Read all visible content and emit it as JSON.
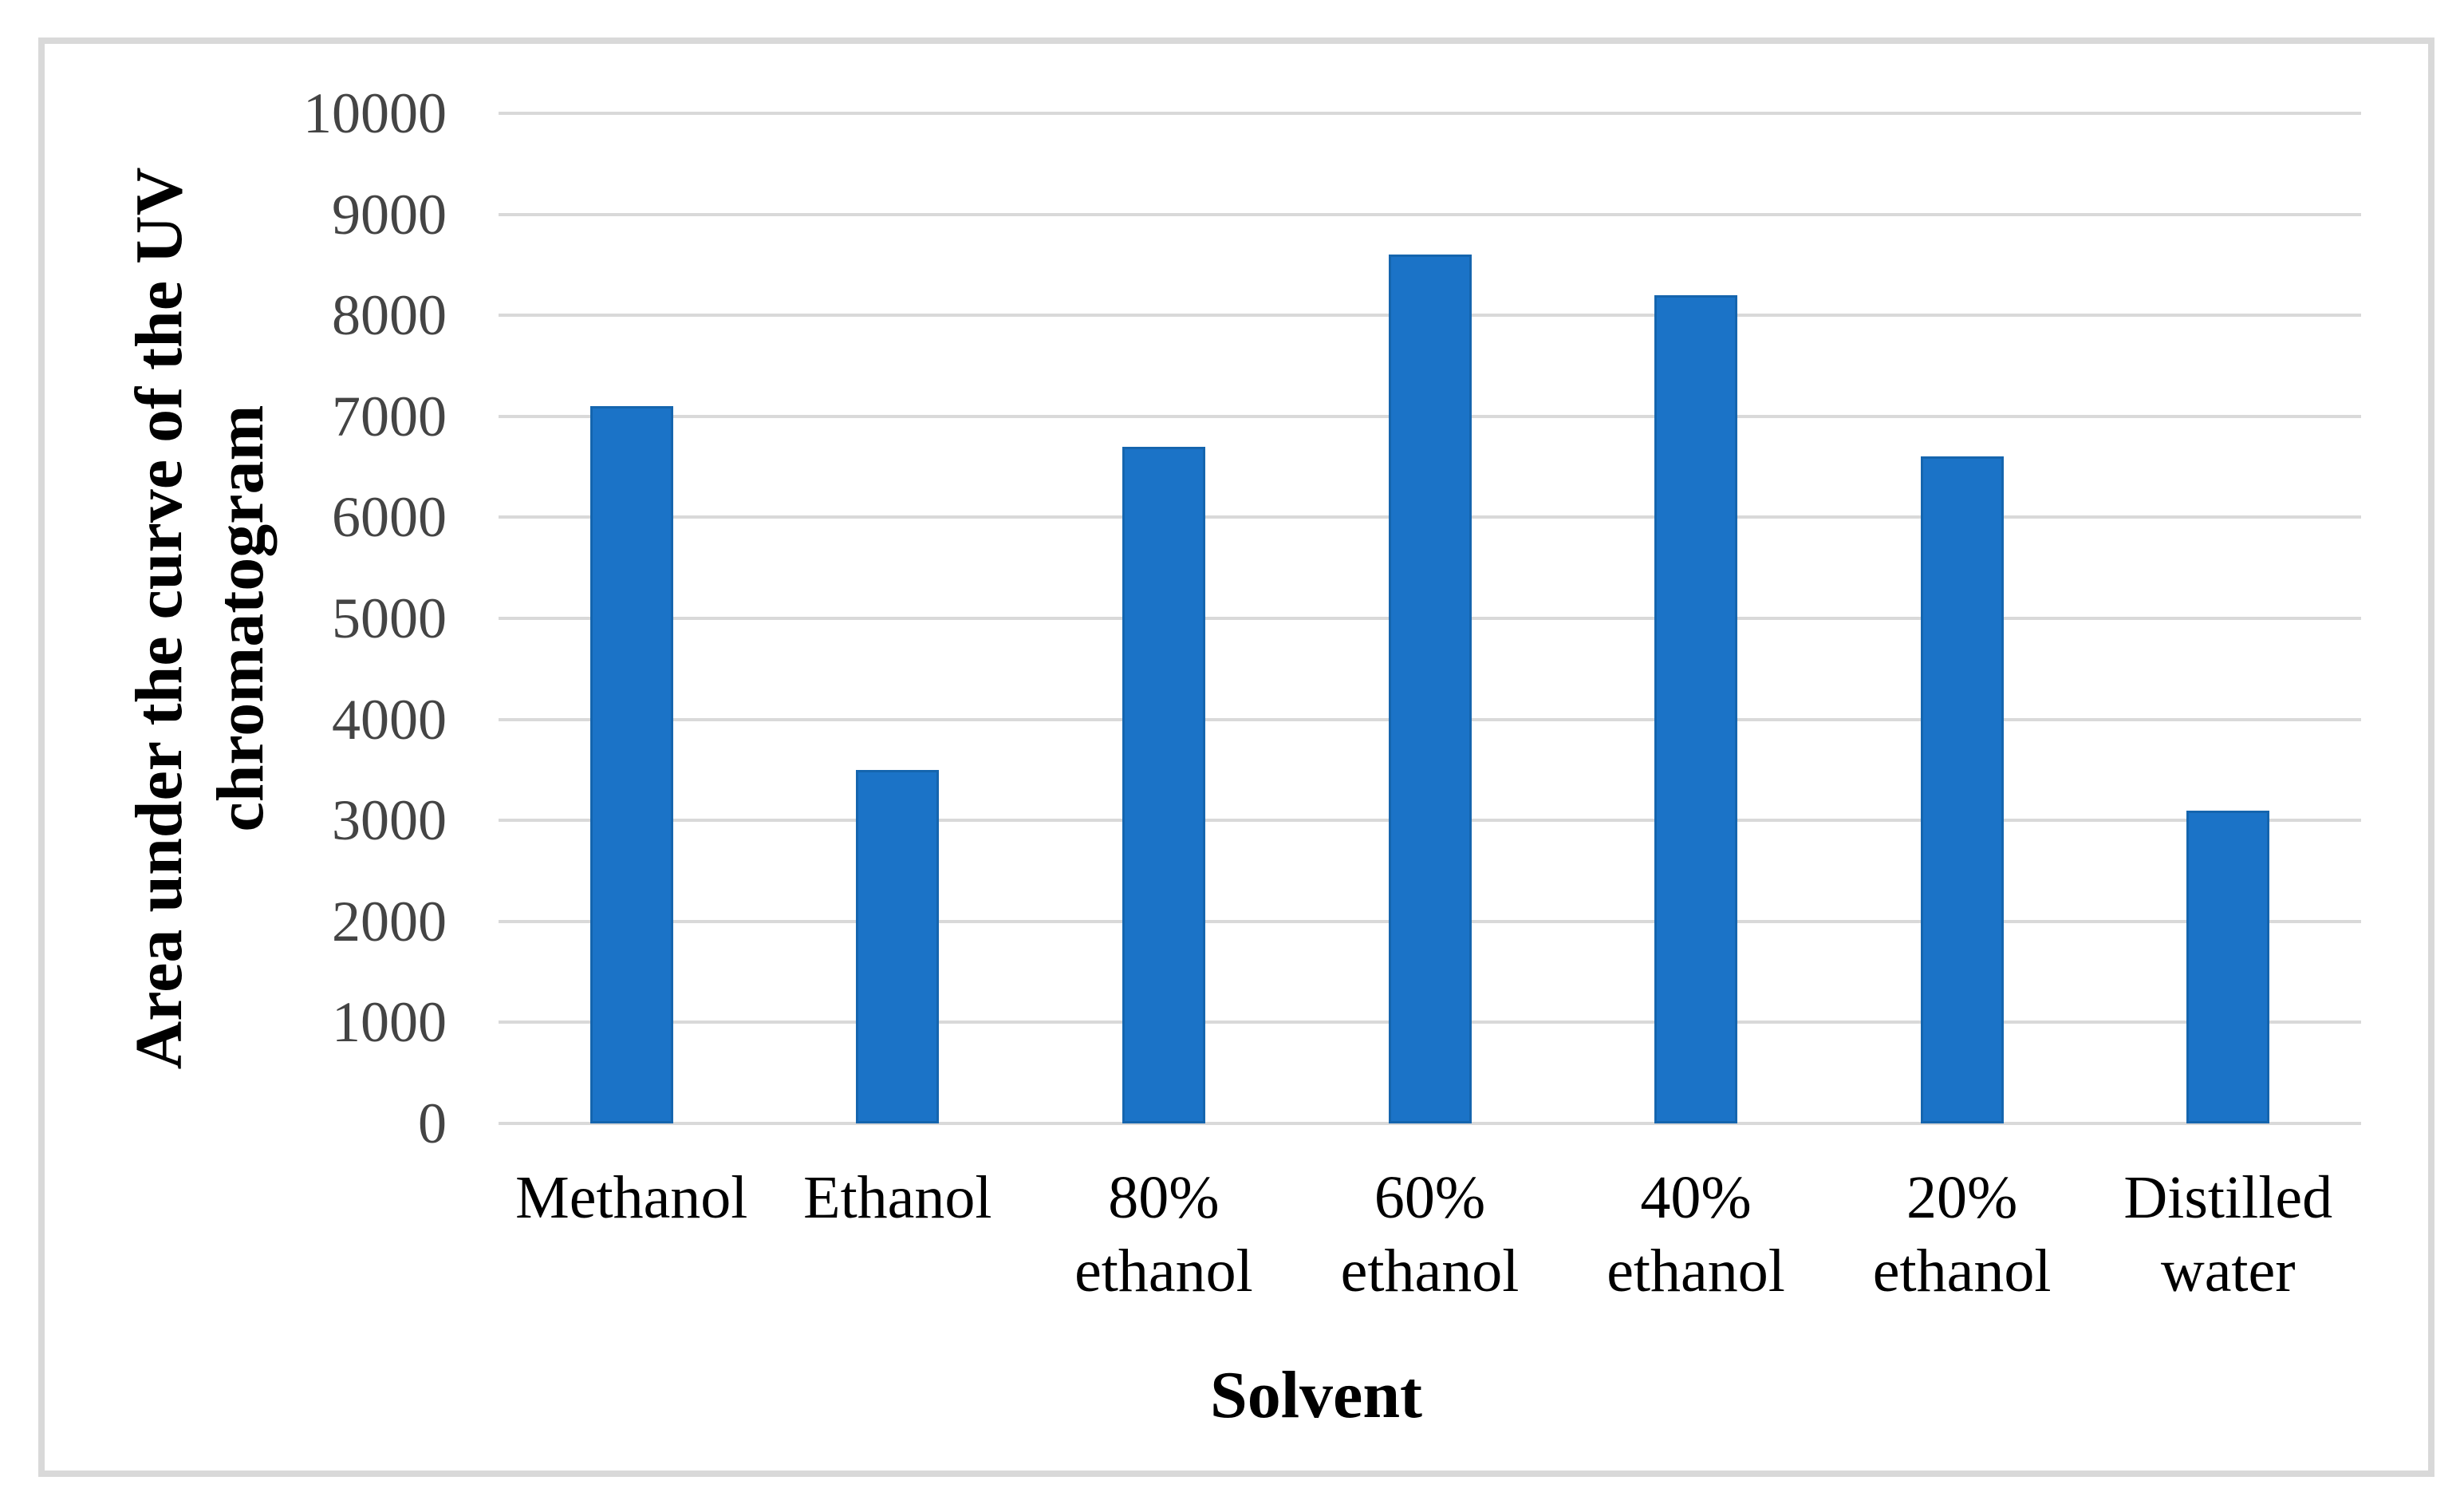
{
  "figure": {
    "frame_color": "#D9D9D9",
    "background_color": "#FFFFFF"
  },
  "chart_data": {
    "type": "bar",
    "title": "",
    "categories": [
      "Methanol",
      "Ethanol",
      "80%\nethanol",
      "60%\nethanol",
      "40%\nethanol",
      "20%\nethanol",
      "Distilled\nwater"
    ],
    "values": [
      7100,
      3500,
      6700,
      8600,
      8200,
      6600,
      3100
    ],
    "xlabel": "Solvent",
    "ylabel": "Area under the curve of the UV\nchromatogram",
    "ylim": [
      0,
      10000
    ],
    "ytick_step": 1000,
    "ytick_labels": [
      "0",
      "1000",
      "2000",
      "3000",
      "4000",
      "5000",
      "6000",
      "7000",
      "8000",
      "9000",
      "10000"
    ],
    "grid": "horizontal-only",
    "legend": "none",
    "bar_color": "#1B73C7",
    "bar_edge_color": "#1565AE",
    "gridline_color": "#D9D9D9",
    "tick_label_color": "#444444",
    "category_label_color": "#000000",
    "axis_title_color": "#000000"
  }
}
